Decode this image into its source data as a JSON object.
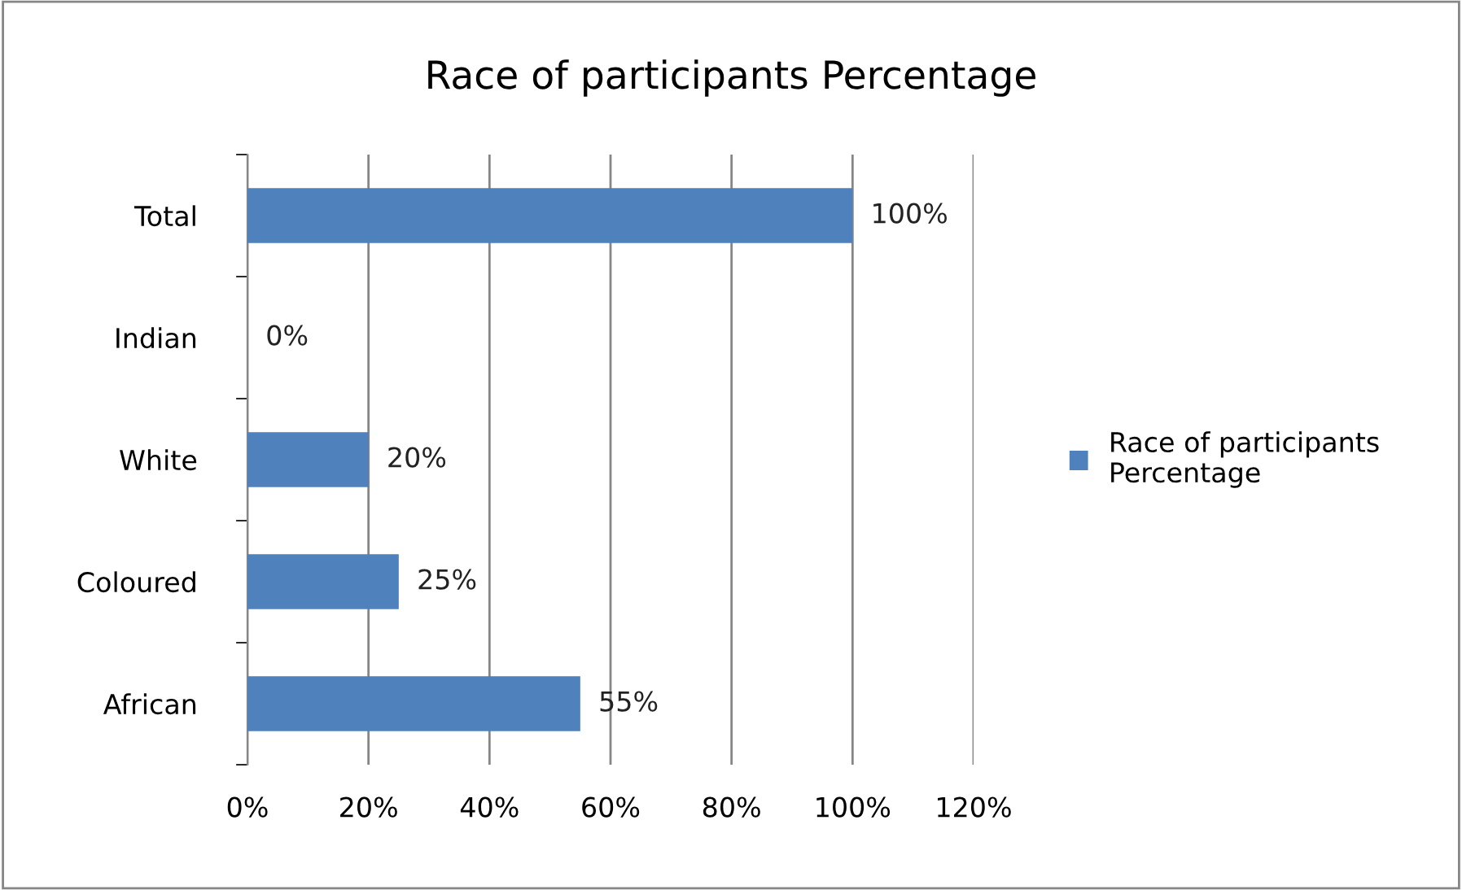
{
  "chart_data": {
    "type": "bar",
    "orientation": "horizontal",
    "title": "Race of participants Percentage",
    "categories": [
      "Total",
      "Indian",
      "White",
      "Coloured",
      "African"
    ],
    "series": [
      {
        "name": "Race of participants\nPercentage",
        "color": "#4f81bd",
        "values": [
          100,
          0,
          20,
          25,
          55
        ],
        "value_labels": [
          "100%",
          "0%",
          "20%",
          "25%",
          "55%"
        ]
      }
    ],
    "xlim": [
      0,
      120
    ],
    "xticks": [
      {
        "value": 0,
        "label": "0%"
      },
      {
        "value": 20,
        "label": "20%"
      },
      {
        "value": 40,
        "label": "40%"
      },
      {
        "value": 60,
        "label": "60%"
      },
      {
        "value": 80,
        "label": "80%"
      },
      {
        "value": 100,
        "label": "100%"
      },
      {
        "value": 120,
        "label": "120%"
      }
    ],
    "grid": "x",
    "legend": "right"
  }
}
